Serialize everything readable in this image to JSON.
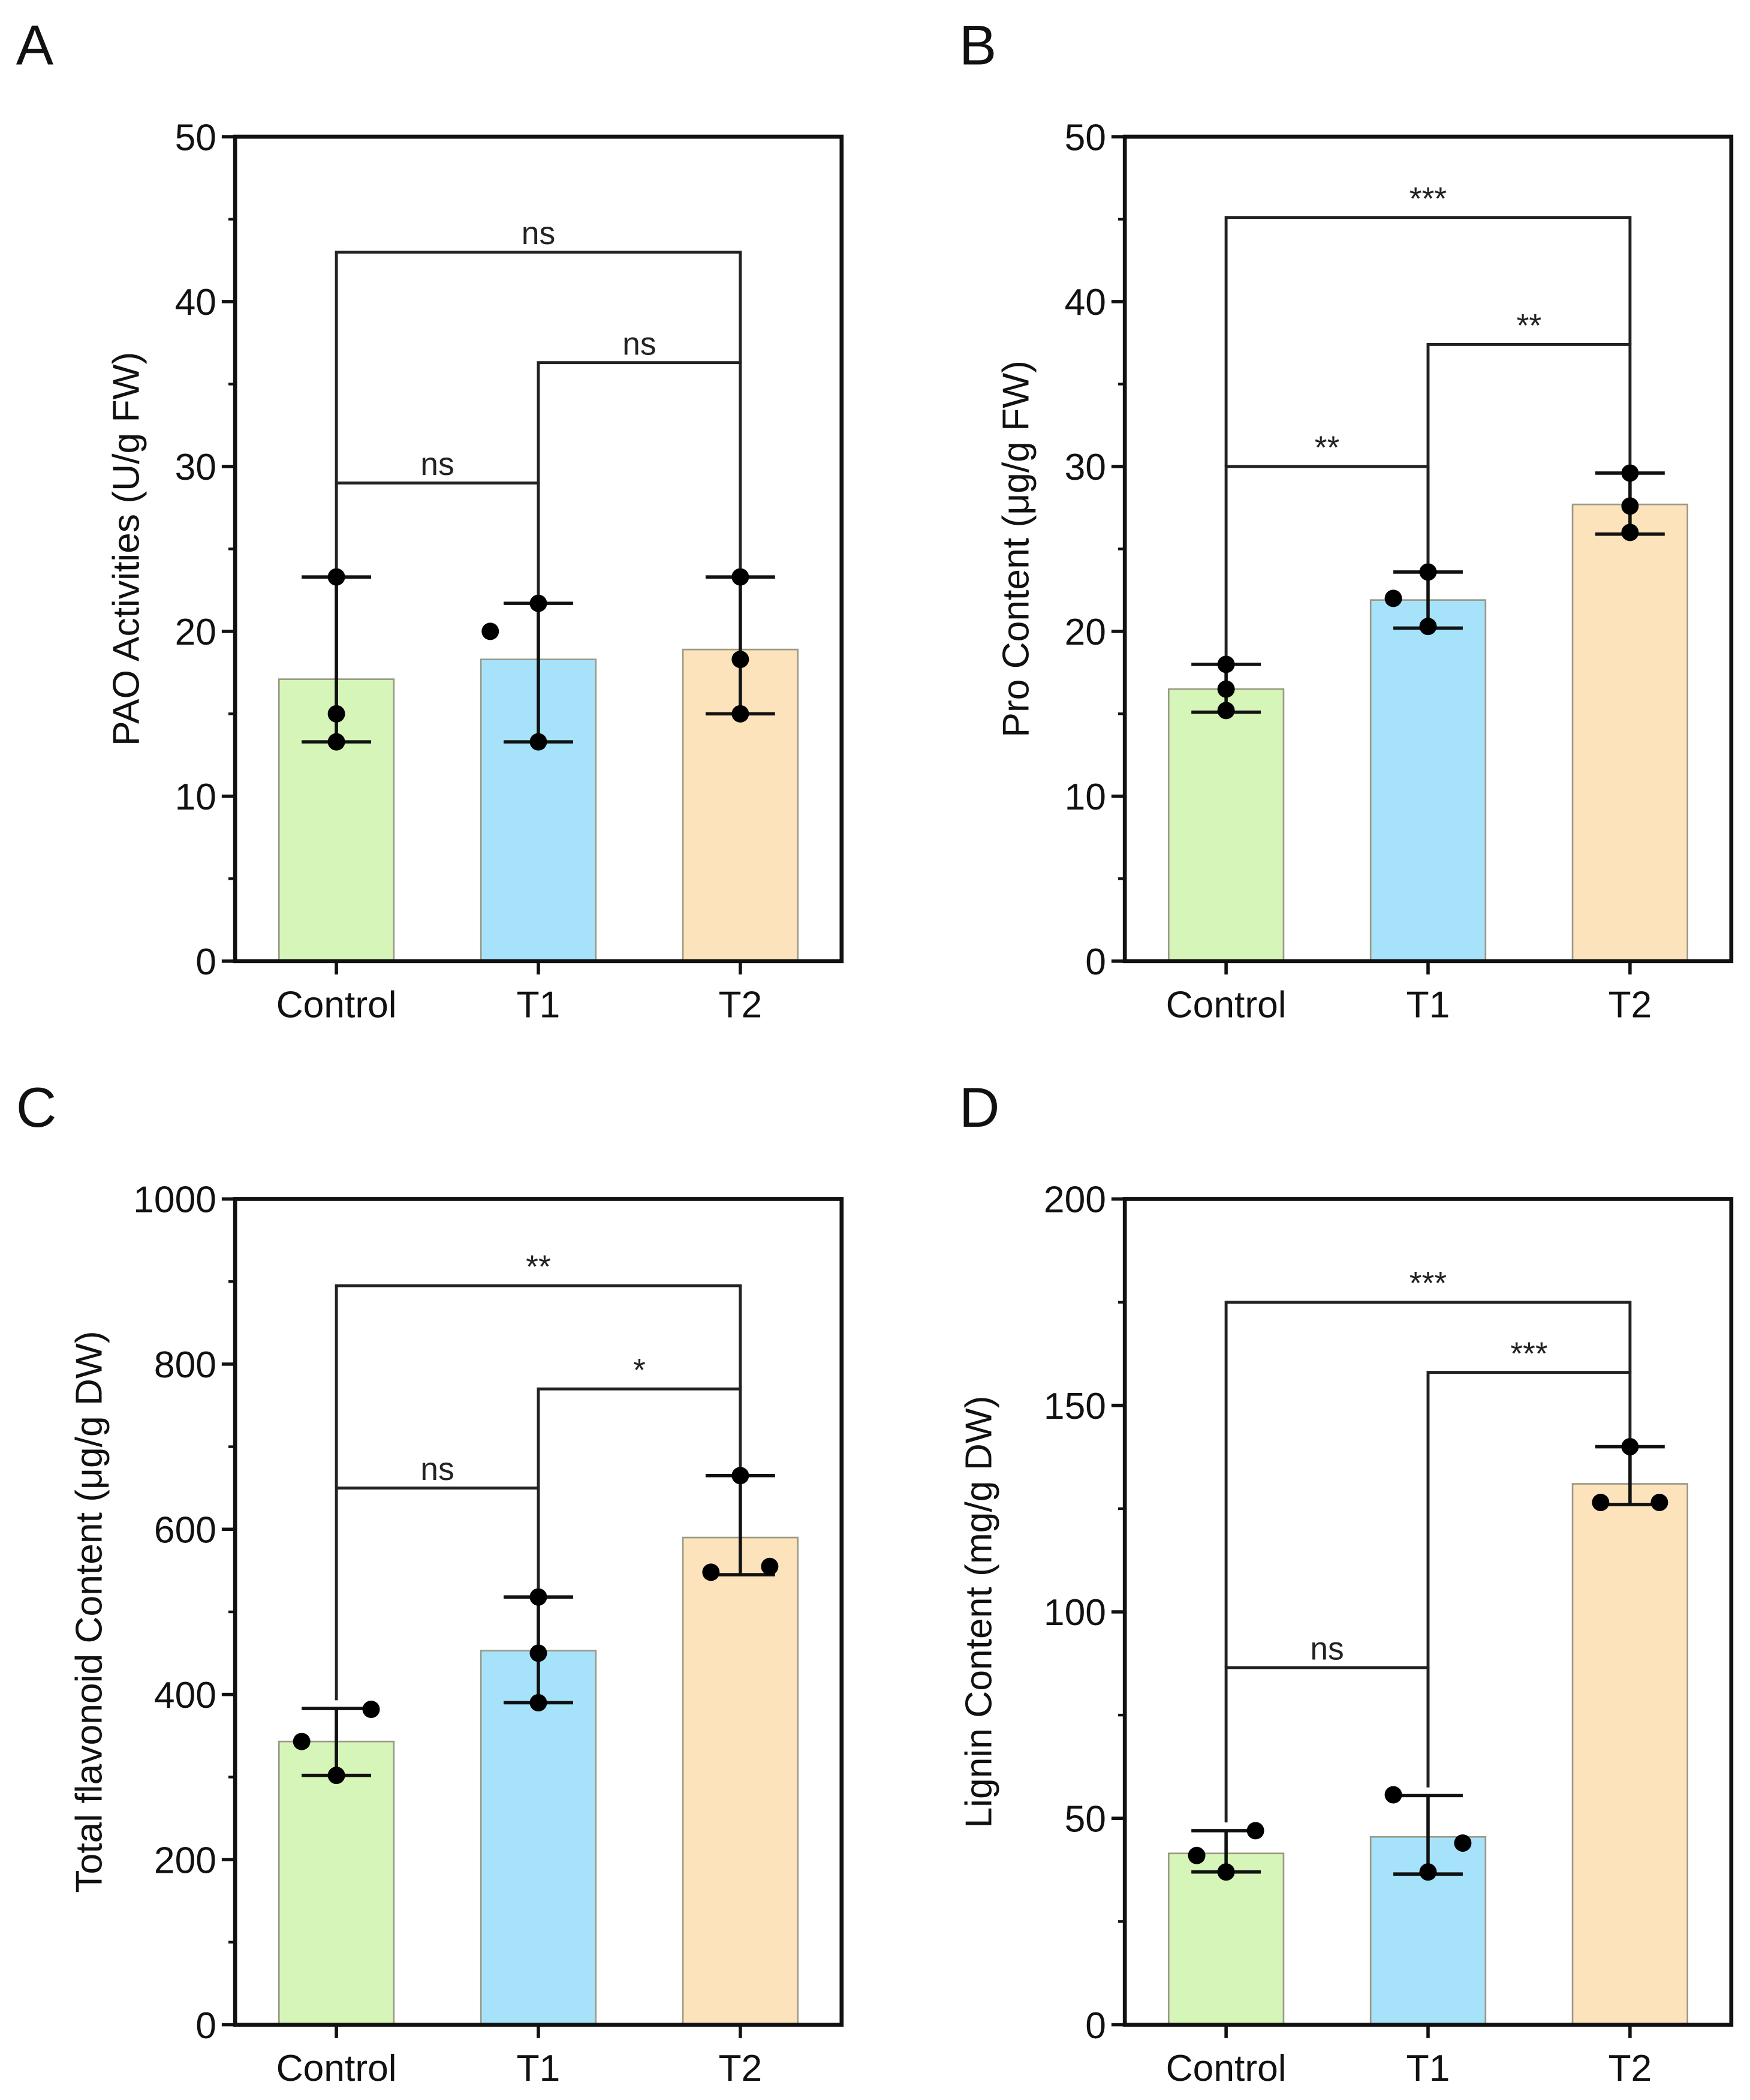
{
  "chart_data": [
    {
      "panel": "A",
      "type": "bar",
      "categories": [
        "Control",
        "T1",
        "T2"
      ],
      "ylabel": "PAO Activities (U/g FW)",
      "ylim": [
        0,
        50
      ],
      "yticks": [
        0,
        10,
        20,
        30,
        40,
        50
      ],
      "minor_step": 5,
      "values": [
        17.1,
        18.3,
        18.9
      ],
      "error": [
        [
          13.3,
          23.3
        ],
        [
          13.3,
          21.7
        ],
        [
          15.0,
          23.3
        ]
      ],
      "points": [
        [
          23.3,
          15.0,
          13.3
        ],
        [
          20.0,
          21.7,
          13.3
        ],
        [
          23.3,
          18.3,
          15.0
        ]
      ],
      "brackets": [
        {
          "from": 0,
          "to": 1,
          "y": 29,
          "label": "ns"
        },
        {
          "from": 1,
          "to": 2,
          "y": 36.3,
          "label": "ns"
        },
        {
          "from": 0,
          "to": 2,
          "y": 43,
          "label": "ns"
        }
      ]
    },
    {
      "panel": "B",
      "type": "bar",
      "categories": [
        "Control",
        "T1",
        "T2"
      ],
      "ylabel": "Pro Content (μg/g FW)",
      "ylim": [
        0,
        50
      ],
      "yticks": [
        0,
        10,
        20,
        30,
        40,
        50
      ],
      "minor_step": 5,
      "values": [
        16.5,
        21.9,
        27.7
      ],
      "error": [
        [
          15.1,
          18.0
        ],
        [
          20.2,
          23.6
        ],
        [
          25.9,
          29.6
        ]
      ],
      "points": [
        [
          18.0,
          16.5,
          15.2
        ],
        [
          22.0,
          23.6,
          20.3
        ],
        [
          29.6,
          27.6,
          26.0
        ]
      ],
      "brackets": [
        {
          "from": 0,
          "to": 1,
          "y": 30,
          "label": "**"
        },
        {
          "from": 1,
          "to": 2,
          "y": 37.4,
          "label": "**"
        },
        {
          "from": 0,
          "to": 2,
          "y": 45.1,
          "label": "***"
        }
      ]
    },
    {
      "panel": "C",
      "type": "bar",
      "categories": [
        "Control",
        "T1",
        "T2"
      ],
      "ylabel": "Total flavonoid Content (μg/g DW)",
      "ylim": [
        0,
        1000
      ],
      "yticks": [
        0,
        200,
        400,
        600,
        800,
        1000
      ],
      "minor_step": 100,
      "values": [
        343,
        453,
        590
      ],
      "error": [
        [
          302,
          383
        ],
        [
          390,
          518
        ],
        [
          545,
          665
        ]
      ],
      "points": [
        [
          343,
          302,
          382
        ],
        [
          450,
          390,
          518
        ],
        [
          548,
          665,
          555
        ]
      ],
      "brackets": [
        {
          "from": 0,
          "to": 1,
          "y": 650,
          "label": "ns"
        },
        {
          "from": 1,
          "to": 2,
          "y": 770,
          "label": "*"
        },
        {
          "from": 0,
          "to": 2,
          "y": 895,
          "label": "**"
        }
      ]
    },
    {
      "panel": "D",
      "type": "bar",
      "categories": [
        "Control",
        "T1",
        "T2"
      ],
      "ylabel": "Lignin Content (mg/g DW)",
      "ylim": [
        0,
        200
      ],
      "yticks": [
        0,
        50,
        100,
        150,
        200
      ],
      "minor_step": 25,
      "values": [
        41.5,
        45.5,
        131
      ],
      "error": [
        [
          37,
          47
        ],
        [
          36.5,
          55.5
        ],
        [
          126,
          140
        ]
      ],
      "points": [
        [
          41,
          37,
          47
        ],
        [
          55.7,
          37,
          44
        ],
        [
          126.5,
          140,
          126.5
        ]
      ],
      "brackets": [
        {
          "from": 0,
          "to": 1,
          "y": 86.5,
          "label": "ns"
        },
        {
          "from": 1,
          "to": 2,
          "y": 158,
          "label": "***"
        },
        {
          "from": 0,
          "to": 2,
          "y": 175,
          "label": "***"
        }
      ]
    }
  ],
  "colors": {
    "bars": [
      "#d6f5b8",
      "#a6e3fb",
      "#fde3bb"
    ],
    "bar_edge": "#9a9a86",
    "ink": "#111111"
  }
}
